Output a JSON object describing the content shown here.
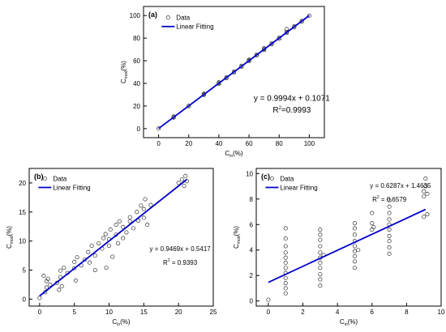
{
  "chart_data": [
    {
      "type": "scatter",
      "panel_label": "(a)",
      "xlabel_main": "C",
      "xlabel_sub": "in",
      "xlabel_unit": "(%)",
      "ylabel_main": "C",
      "ylabel_sub": "mod",
      "ylabel_unit": "(%)",
      "xlim": [
        -10,
        110
      ],
      "ylim": [
        -8,
        108
      ],
      "xticks": [
        0,
        20,
        40,
        60,
        80,
        100
      ],
      "yticks": [
        0,
        20,
        40,
        60,
        80,
        100
      ],
      "legend": {
        "placement": "top-left",
        "data_label": "Data",
        "fit_label": "Linear Fitting"
      },
      "equation": "y = 0.9994x + 0.1071",
      "r2_prefix": "R",
      "r2_sup": "2",
      "r2_value": "=0.9993",
      "fit": {
        "slope": 0.9994,
        "intercept": 0.1071,
        "x_range": [
          0,
          100
        ]
      },
      "series": [
        {
          "name": "Data",
          "points": [
            [
              0,
              0.1
            ],
            [
              10,
              9.8
            ],
            [
              10,
              10.3
            ],
            [
              10,
              10.6
            ],
            [
              20,
              19.9
            ],
            [
              20,
              20.2
            ],
            [
              30,
              29.7
            ],
            [
              30,
              30.3
            ],
            [
              30,
              30.8
            ],
            [
              40,
              39.6
            ],
            [
              40,
              40.4
            ],
            [
              40,
              40.9
            ],
            [
              45,
              44.6
            ],
            [
              45,
              45.3
            ],
            [
              50,
              49.5
            ],
            [
              50,
              50.4
            ],
            [
              55,
              54.7
            ],
            [
              55,
              55.5
            ],
            [
              60,
              59.6
            ],
            [
              60,
              60.4
            ],
            [
              60,
              61.0
            ],
            [
              65,
              64.6
            ],
            [
              65,
              65.4
            ],
            [
              70,
              69.5
            ],
            [
              70,
              70.3
            ],
            [
              70,
              71.0
            ],
            [
              75,
              74.6
            ],
            [
              75,
              75.5
            ],
            [
              80,
              79.4
            ],
            [
              80,
              80.3
            ],
            [
              85,
              84.6
            ],
            [
              85,
              85.5
            ],
            [
              85,
              88.0
            ],
            [
              90,
              89.6
            ],
            [
              90,
              90.4
            ],
            [
              95,
              94.5
            ],
            [
              95,
              95.2
            ],
            [
              100,
              99.8
            ]
          ]
        }
      ]
    },
    {
      "type": "scatter",
      "panel_label": "(b)",
      "xlabel_main": "C",
      "xlabel_sub": "in",
      "xlabel_unit": "(%)",
      "ylabel_main": "C",
      "ylabel_sub": "mod",
      "ylabel_unit": "(%)",
      "xlim": [
        -1.5,
        25
      ],
      "ylim": [
        -1.2,
        22.5
      ],
      "xticks": [
        0,
        5,
        10,
        15,
        20,
        25
      ],
      "yticks": [
        0,
        5,
        10,
        15,
        20
      ],
      "legend": {
        "placement": "top-left",
        "data_label": "Data",
        "fit_label": "Linear Fitting"
      },
      "equation": "y = 0.9469x + 0.5417",
      "r2_prefix": "R",
      "r2_sup": "2",
      "r2_value": " = 0.9393",
      "fit": {
        "slope": 0.9469,
        "intercept": 0.5417,
        "x_range": [
          0,
          21.2
        ]
      },
      "series": [
        {
          "name": "Data",
          "points": [
            [
              0,
              0.2
            ],
            [
              0.8,
              1.2
            ],
            [
              1,
              2.0
            ],
            [
              1,
              3.1
            ],
            [
              1.2,
              3.5
            ],
            [
              1.5,
              2.5
            ],
            [
              0.6,
              4.0
            ],
            [
              2.5,
              2.8
            ],
            [
              3,
              3.8
            ],
            [
              3,
              4.9
            ],
            [
              3.2,
              2.2
            ],
            [
              3.5,
              5.4
            ],
            [
              2.8,
              1.6
            ],
            [
              4,
              4.5
            ],
            [
              5,
              5.3
            ],
            [
              5,
              6.4
            ],
            [
              5.2,
              3.2
            ],
            [
              5.4,
              7.2
            ],
            [
              6,
              5.8
            ],
            [
              6.5,
              6.8
            ],
            [
              7,
              8.1
            ],
            [
              7.2,
              6.3
            ],
            [
              7.5,
              9.2
            ],
            [
              8,
              7.5
            ],
            [
              8,
              5.0
            ],
            [
              8.5,
              9.6
            ],
            [
              9,
              8.7
            ],
            [
              9.2,
              10.5
            ],
            [
              9.5,
              11.2
            ],
            [
              9.6,
              5.4
            ],
            [
              10,
              10.3
            ],
            [
              10,
              9.2
            ],
            [
              10.2,
              12.0
            ],
            [
              10.5,
              7.3
            ],
            [
              11,
              11.1
            ],
            [
              11,
              12.8
            ],
            [
              11.3,
              9.6
            ],
            [
              11.5,
              13.4
            ],
            [
              12,
              12.4
            ],
            [
              12,
              10.5
            ],
            [
              12.5,
              11.5
            ],
            [
              13,
              13.4
            ],
            [
              13,
              14.1
            ],
            [
              13.5,
              12.2
            ],
            [
              14,
              15.0
            ],
            [
              14.2,
              13.5
            ],
            [
              14.6,
              16.1
            ],
            [
              15,
              15.5
            ],
            [
              15,
              14.0
            ],
            [
              15.2,
              17.2
            ],
            [
              15.5,
              12.8
            ],
            [
              16,
              16.2
            ],
            [
              20,
              20.0
            ],
            [
              20.5,
              20.6
            ],
            [
              21,
              21.2
            ],
            [
              21.2,
              20.3
            ],
            [
              20.8,
              19.5
            ]
          ]
        }
      ]
    },
    {
      "type": "scatter",
      "panel_label": "(c)",
      "xlabel_main": "C",
      "xlabel_sub": "in",
      "xlabel_unit": "(%)",
      "ylabel_main": "C",
      "ylabel_sub": "mod",
      "ylabel_unit": "(%)",
      "xlim": [
        -0.7,
        10
      ],
      "ylim": [
        -0.4,
        10.4
      ],
      "xticks": [
        0,
        2,
        4,
        6,
        8,
        10
      ],
      "yticks": [
        0,
        2,
        4,
        6,
        8,
        10
      ],
      "legend": {
        "placement": "top-left",
        "data_label": "Data",
        "fit_label": "Linear Fitting"
      },
      "equation": "y = 0.6287x + 1.4635",
      "r2_prefix": "R",
      "r2_sup": "2",
      "r2_value": " = 0.6579",
      "fit": {
        "slope": 0.6287,
        "intercept": 1.4635,
        "x_range": [
          0,
          9.1
        ]
      },
      "series": [
        {
          "name": "Data",
          "points": [
            [
              0,
              0.1
            ],
            [
              1,
              0.6
            ],
            [
              1,
              1.0
            ],
            [
              1,
              1.4
            ],
            [
              1,
              1.8
            ],
            [
              1,
              2.2
            ],
            [
              1,
              2.6
            ],
            [
              1,
              3.0
            ],
            [
              1,
              3.4
            ],
            [
              1,
              3.8
            ],
            [
              1,
              4.3
            ],
            [
              1,
              4.9
            ],
            [
              1,
              5.7
            ],
            [
              3,
              1.2
            ],
            [
              3,
              1.7
            ],
            [
              3,
              2.1
            ],
            [
              3,
              2.6
            ],
            [
              3,
              3.0
            ],
            [
              3,
              3.4
            ],
            [
              3,
              3.8
            ],
            [
              3,
              4.3
            ],
            [
              3,
              4.8
            ],
            [
              3,
              5.2
            ],
            [
              3,
              5.6
            ],
            [
              3.2,
              3.6
            ],
            [
              5,
              2.6
            ],
            [
              5,
              3.1
            ],
            [
              5,
              3.5
            ],
            [
              5,
              3.9
            ],
            [
              5,
              4.3
            ],
            [
              5,
              4.7
            ],
            [
              5,
              5.2
            ],
            [
              5,
              5.7
            ],
            [
              5,
              6.1
            ],
            [
              5.2,
              4.0
            ],
            [
              6,
              5.6
            ],
            [
              6,
              6.1
            ],
            [
              6,
              6.9
            ],
            [
              6.1,
              5.8
            ],
            [
              7,
              3.7
            ],
            [
              7,
              4.2
            ],
            [
              7,
              4.7
            ],
            [
              7,
              5.1
            ],
            [
              7,
              5.6
            ],
            [
              7,
              6.0
            ],
            [
              7,
              6.4
            ],
            [
              7,
              6.9
            ],
            [
              7,
              7.4
            ],
            [
              7,
              7.9
            ],
            [
              9,
              6.6
            ],
            [
              9,
              8.2
            ],
            [
              9,
              8.6
            ],
            [
              9.1,
              9.0
            ],
            [
              9.1,
              9.6
            ],
            [
              9.2,
              6.8
            ],
            [
              9.2,
              8.4
            ]
          ]
        }
      ]
    }
  ]
}
